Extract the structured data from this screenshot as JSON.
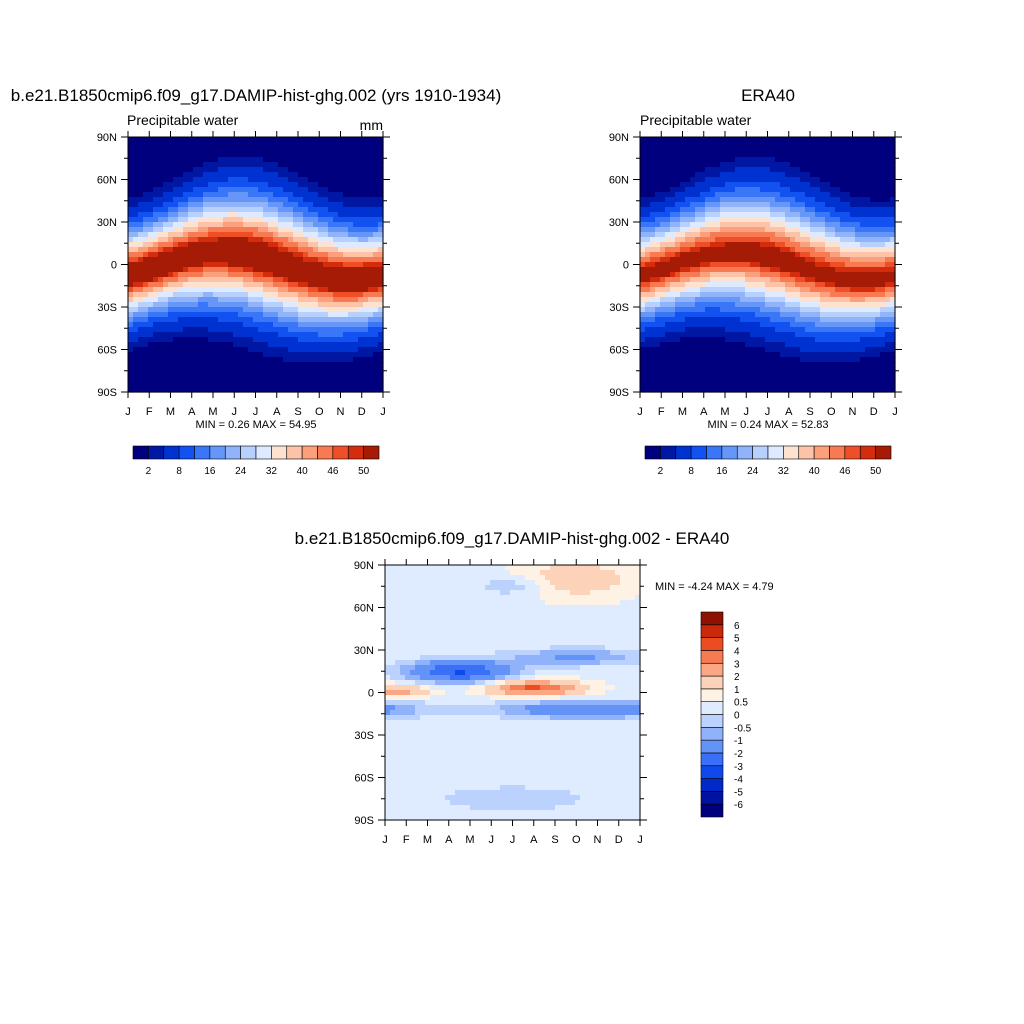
{
  "panels": [
    {
      "title": "b.e21.B1850cmip6.f09_g17.DAMIP-hist-ghg.002 (yrs 1910-1934)",
      "subtitle": "Precipitable water",
      "units": "mm",
      "stats_text": "MIN =   0.26 MAX =  54.95"
    },
    {
      "title": "ERA40",
      "subtitle": "Precipitable water",
      "units": "",
      "stats_text": "MIN =   0.24 MAX =  52.83"
    },
    {
      "title": "b.e21.B1850cmip6.f09_g17.DAMIP-hist-ghg.002 - ERA40",
      "subtitle": "",
      "units": "",
      "stats_text": "MIN =  -4.24 MAX =   4.79"
    }
  ],
  "chart_data": [
    {
      "type": "heatmap",
      "panel": 0,
      "x_ticks": [
        "J",
        "F",
        "M",
        "A",
        "M",
        "J",
        "J",
        "A",
        "S",
        "O",
        "N",
        "D",
        "J"
      ],
      "y_ticks": [
        "90N",
        "60N",
        "30N",
        "0",
        "30S",
        "60S",
        "90S"
      ],
      "ylim": [
        -90,
        90
      ],
      "xlim": [
        0,
        12
      ],
      "min": 0.26,
      "max": 54.95,
      "eq_peak": 52,
      "wet_lat_amp": 8,
      "colorbar": {
        "orientation": "horizontal",
        "levels": [
          2,
          4,
          8,
          12,
          16,
          20,
          24,
          28,
          32,
          36,
          40,
          42,
          46,
          48,
          50
        ],
        "tick_labels": [
          "2",
          "8",
          "16",
          "24",
          "32",
          "40",
          "46",
          "50"
        ],
        "colors": [
          "#00007f",
          "#0017a3",
          "#0032d1",
          "#1252f0",
          "#3a76f8",
          "#6596f8",
          "#90b3fa",
          "#b8d0fc",
          "#ddeaff",
          "#fde3cf",
          "#fcc3a9",
          "#fba07d",
          "#f77a52",
          "#ee4f26",
          "#d42d0e",
          "#a51b05"
        ]
      }
    },
    {
      "type": "heatmap",
      "panel": 1,
      "x_ticks": [
        "J",
        "F",
        "M",
        "A",
        "M",
        "J",
        "J",
        "A",
        "S",
        "O",
        "N",
        "D",
        "J"
      ],
      "y_ticks": [
        "90N",
        "60N",
        "30N",
        "0",
        "30S",
        "60S",
        "90S"
      ],
      "ylim": [
        -90,
        90
      ],
      "xlim": [
        0,
        12
      ],
      "min": 0.24,
      "max": 52.83,
      "eq_peak": 49,
      "wet_lat_amp": 7,
      "colorbar": {
        "orientation": "horizontal",
        "levels": [
          2,
          4,
          8,
          12,
          16,
          20,
          24,
          28,
          32,
          36,
          40,
          42,
          46,
          48,
          50
        ],
        "tick_labels": [
          "2",
          "8",
          "16",
          "24",
          "32",
          "40",
          "46",
          "50"
        ],
        "colors": [
          "#00007f",
          "#0017a3",
          "#0032d1",
          "#1252f0",
          "#3a76f8",
          "#6596f8",
          "#90b3fa",
          "#b8d0fc",
          "#ddeaff",
          "#fde3cf",
          "#fcc3a9",
          "#fba07d",
          "#f77a52",
          "#ee4f26",
          "#d42d0e",
          "#a51b05"
        ]
      }
    },
    {
      "type": "heatmap",
      "panel": 2,
      "x_ticks": [
        "J",
        "F",
        "M",
        "A",
        "M",
        "J",
        "J",
        "A",
        "S",
        "O",
        "N",
        "D",
        "J"
      ],
      "y_ticks": [
        "90N",
        "60N",
        "30N",
        "0",
        "30S",
        "60S",
        "90S"
      ],
      "ylim": [
        -90,
        90
      ],
      "xlim": [
        0,
        12
      ],
      "min": -4.24,
      "max": 4.79,
      "colorbar": {
        "orientation": "vertical",
        "levels": [
          -6,
          -5,
          -4,
          -3,
          -2,
          -1,
          -0.5,
          0,
          0.5,
          1,
          2,
          3,
          4,
          5,
          6
        ],
        "tick_labels": [
          "-6",
          "-5",
          "-4",
          "-3",
          "-2",
          "-1",
          "-0.5",
          "0",
          "0.5",
          "1",
          "2",
          "3",
          "4",
          "5",
          "6"
        ],
        "colors": [
          "#00007f",
          "#0013a0",
          "#0029c9",
          "#0f49ec",
          "#3a70f7",
          "#6493f8",
          "#8fb2fa",
          "#bad2fd",
          "#dfecff",
          "#fef2e4",
          "#fcd2b8",
          "#fba783",
          "#f77b52",
          "#ec4c22",
          "#c9290a",
          "#8e1204"
        ]
      }
    }
  ]
}
